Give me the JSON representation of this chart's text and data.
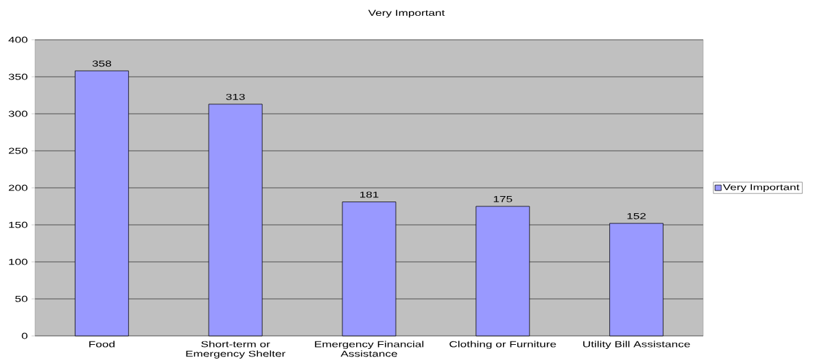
{
  "chart_data": {
    "type": "bar",
    "title": "Very Important",
    "categories": [
      "Food",
      "Short-term or Emergency Shelter",
      "Emergency Financial Assistance",
      "Clothing or Furniture",
      "Utility Bill Assistance"
    ],
    "series": [
      {
        "name": "Very Important",
        "color": "#9999ff",
        "values": [
          358,
          313,
          181,
          175,
          152
        ]
      }
    ],
    "ylim": [
      0,
      400
    ],
    "yticks": [
      0,
      50,
      100,
      150,
      200,
      250,
      300,
      350,
      400
    ],
    "grid": "y",
    "legend": "right",
    "data_labels": true
  }
}
